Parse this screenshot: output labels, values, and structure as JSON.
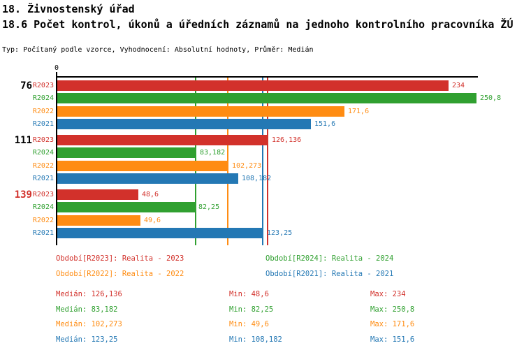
{
  "header": {
    "title_line1": "18. Živnostenský úřad",
    "title_line2": "18.6 Počet kontrol, úkonů a úředních záznamů na jednoho kontrolního pracovníka ŽÚ",
    "meta_line": "Typ: Počítaný podle vzorce, Vyhodnocení: Absolutní hodnoty, Průměr: Medián"
  },
  "colors": {
    "R2023": "#d2312b",
    "R2024": "#30a030",
    "R2022": "#ff8c12",
    "R2021": "#2478b4",
    "axis": "#000000",
    "text": "#000000"
  },
  "chart_data": {
    "type": "bar",
    "orientation": "horizontal",
    "title": "18.6 Počet kontrol, úkonů a úředních záznamů na jednoho kontrolního pracovníka ŽÚ",
    "average_type": "Medián",
    "axis": {
      "min": 0,
      "max": 250.8,
      "tick_label": "0",
      "grid": false
    },
    "series_order": [
      "R2023",
      "R2024",
      "R2022",
      "R2021"
    ],
    "groups": [
      {
        "label": "76",
        "label_color": "#000000",
        "bars": [
          {
            "series": "R2023",
            "value": 234,
            "display": "234"
          },
          {
            "series": "R2024",
            "value": 250.8,
            "display": "250,8"
          },
          {
            "series": "R2022",
            "value": 171.6,
            "display": "171,6"
          },
          {
            "series": "R2021",
            "value": 151.6,
            "display": "151,6"
          }
        ]
      },
      {
        "label": "111",
        "label_color": "#000000",
        "bars": [
          {
            "series": "R2023",
            "value": 126.136,
            "display": "126,136"
          },
          {
            "series": "R2024",
            "value": 83.182,
            "display": "83,182"
          },
          {
            "series": "R2022",
            "value": 102.273,
            "display": "102,273"
          },
          {
            "series": "R2021",
            "value": 108.182,
            "display": "108,182"
          }
        ]
      },
      {
        "label": "139",
        "label_color": "#d2312b",
        "bars": [
          {
            "series": "R2023",
            "value": 48.6,
            "display": "48,6"
          },
          {
            "series": "R2024",
            "value": 82.25,
            "display": "82,25"
          },
          {
            "series": "R2022",
            "value": 49.6,
            "display": "49,6"
          },
          {
            "series": "R2021",
            "value": 123.25,
            "display": "123,25"
          }
        ]
      }
    ],
    "median_lines": [
      {
        "series": "R2023",
        "value": 126.136
      },
      {
        "series": "R2024",
        "value": 83.182
      },
      {
        "series": "R2022",
        "value": 102.273
      },
      {
        "series": "R2021",
        "value": 123.25
      }
    ]
  },
  "legend": [
    {
      "series": "R2023",
      "text": "Období[R2023]: Realita - 2023"
    },
    {
      "series": "R2024",
      "text": "Období[R2024]: Realita - 2024"
    },
    {
      "series": "R2022",
      "text": "Období[R2022]: Realita - 2022"
    },
    {
      "series": "R2021",
      "text": "Období[R2021]: Realita - 2021"
    }
  ],
  "stats": [
    {
      "series": "R2023",
      "median": "Medián: 126,136",
      "min": "Min: 48,6",
      "max": "Max: 234"
    },
    {
      "series": "R2024",
      "median": "Medián: 83,182",
      "min": "Min: 82,25",
      "max": "Max: 250,8"
    },
    {
      "series": "R2022",
      "median": "Medián: 102,273",
      "min": "Min: 49,6",
      "max": "Max: 171,6"
    },
    {
      "series": "R2021",
      "median": "Medián: 123,25",
      "min": "Min: 108,182",
      "max": "Max: 151,6"
    }
  ]
}
